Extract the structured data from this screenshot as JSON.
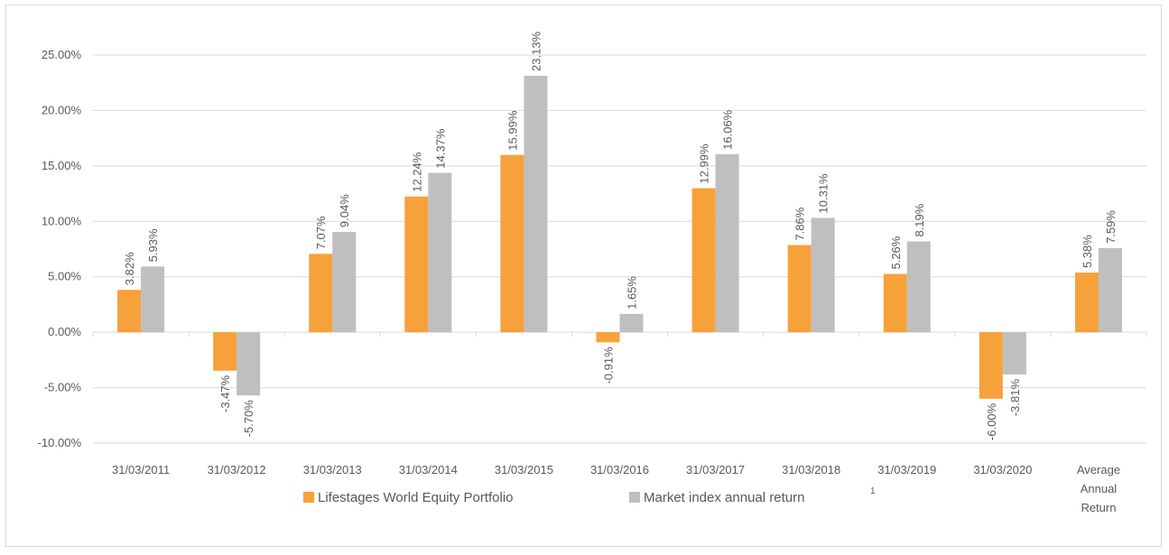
{
  "chart_data": {
    "type": "bar",
    "categories": [
      [
        "31/03/2011"
      ],
      [
        "31/03/2012"
      ],
      [
        "31/03/2013"
      ],
      [
        "31/03/2014"
      ],
      [
        "31/03/2015"
      ],
      [
        "31/03/2016"
      ],
      [
        "31/03/2017"
      ],
      [
        "31/03/2018"
      ],
      [
        "31/03/2019"
      ],
      [
        "31/03/2020"
      ],
      [
        "Average",
        "Annual",
        "Return"
      ]
    ],
    "series": [
      {
        "name": "Lifestages World Equity Portfolio",
        "color": "#f7a13a",
        "values": [
          3.82,
          -3.47,
          7.07,
          12.24,
          15.99,
          -0.91,
          12.99,
          7.86,
          5.26,
          -6.0,
          5.38
        ],
        "labels": [
          "3.82%",
          "-3.47%",
          "7.07%",
          "12.24%",
          "15.99%",
          "-0.91%",
          "12.99%",
          "7.86%",
          "5.26%",
          "-6.00%",
          "5.38%"
        ]
      },
      {
        "name": "Market index annual return",
        "name_superscript": "1",
        "color": "#bfbfbf",
        "values": [
          5.93,
          -5.7,
          9.04,
          14.37,
          23.13,
          1.65,
          16.06,
          10.31,
          8.19,
          -3.81,
          7.59
        ],
        "labels": [
          "5.93%",
          "-5.70%",
          "9.04%",
          "14.37%",
          "23.13%",
          "1.65%",
          "16.06%",
          "10.31%",
          "8.19%",
          "-3.81%",
          "7.59%"
        ]
      }
    ],
    "yticks": [
      25,
      20,
      15,
      10,
      5,
      0,
      -5,
      -10
    ],
    "ytick_labels": [
      "25.00%",
      "20.00%",
      "15.00%",
      "10.00%",
      "5.00%",
      "0.00%",
      "-5.00%",
      "-10.00%"
    ],
    "ylim": [
      -10,
      25
    ],
    "grid": true,
    "legend_position": "bottom",
    "title": "",
    "xlabel": "",
    "ylabel": ""
  }
}
